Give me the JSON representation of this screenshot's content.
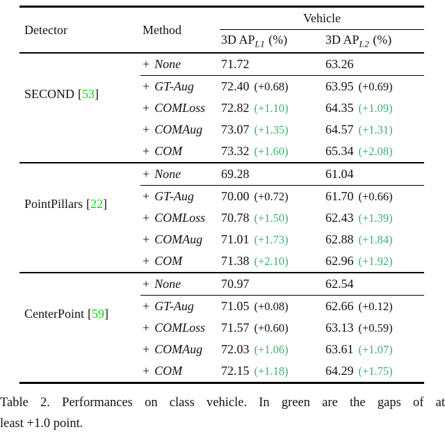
{
  "colors": {
    "cite_green": "#00e000",
    "gap_green": "#3bb273"
  },
  "symbols": {
    "plus": "+",
    "bracket_open": "[",
    "bracket_close": "]"
  },
  "table": {
    "header": {
      "detector": "Detector",
      "method": "Method",
      "span_label": "Vehicle",
      "metrics": [
        {
          "prefix": "3D AP",
          "sub": "L1",
          "suffix": "(%)"
        },
        {
          "prefix": "3D AP",
          "sub": "L2",
          "suffix": "(%)"
        }
      ]
    },
    "groups": [
      {
        "detector": "SECOND",
        "cite": "53",
        "rows": [
          {
            "method": "None",
            "l1": "71.72",
            "l1_gap": "",
            "l1_green": false,
            "l2": "63.26",
            "l2_gap": "",
            "l2_green": false
          },
          {
            "method": "GT-Aug",
            "l1": "72.40",
            "l1_gap": "(+0.68)",
            "l1_green": false,
            "l2": "63.95",
            "l2_gap": "(+0.69)",
            "l2_green": false
          },
          {
            "method": "COMLoss",
            "l1": "72.82",
            "l1_gap": "(+1.10)",
            "l1_green": true,
            "l2": "64.35",
            "l2_gap": "(+1.09)",
            "l2_green": true
          },
          {
            "method": "COMAug",
            "l1": "73.07",
            "l1_gap": "(+1.35)",
            "l1_green": true,
            "l2": "64.57",
            "l2_gap": "(+1.31)",
            "l2_green": true
          },
          {
            "method": "COM",
            "l1": "73.32",
            "l1_gap": "(+1.60)",
            "l1_green": true,
            "l2": "65.34",
            "l2_gap": "(+2.08)",
            "l2_green": true
          }
        ]
      },
      {
        "detector": "PointPillars",
        "cite": "22",
        "rows": [
          {
            "method": "None",
            "l1": "69.28",
            "l1_gap": "",
            "l1_green": false,
            "l2": "61.04",
            "l2_gap": "",
            "l2_green": false
          },
          {
            "method": "GT-Aug",
            "l1": "70.00",
            "l1_gap": "(+0.72)",
            "l1_green": false,
            "l2": "61.70",
            "l2_gap": "(+0.66)",
            "l2_green": false
          },
          {
            "method": "COMLoss",
            "l1": "70.78",
            "l1_gap": "(+1.50)",
            "l1_green": true,
            "l2": "62.43",
            "l2_gap": "(+1.39)",
            "l2_green": true
          },
          {
            "method": "COMAug",
            "l1": "71.01",
            "l1_gap": "(+1.73)",
            "l1_green": true,
            "l2": "62.88",
            "l2_gap": "(+1.84)",
            "l2_green": true
          },
          {
            "method": "COM",
            "l1": "71.38",
            "l1_gap": "(+2.10)",
            "l1_green": true,
            "l2": "62.96",
            "l2_gap": "(+1.92)",
            "l2_green": true
          }
        ]
      },
      {
        "detector": "CenterPoint",
        "cite": "59",
        "rows": [
          {
            "method": "None",
            "l1": "70.97",
            "l1_gap": "",
            "l1_green": false,
            "l2": "62.54",
            "l2_gap": "",
            "l2_green": false
          },
          {
            "method": "GT-Aug",
            "l1": "71.05",
            "l1_gap": "(+0.08)",
            "l1_green": false,
            "l2": "62.66",
            "l2_gap": "(+0.12)",
            "l2_green": false
          },
          {
            "method": "COMLoss",
            "l1": "71.57",
            "l1_gap": "(+0.60)",
            "l1_green": false,
            "l2": "63.13",
            "l2_gap": "(+0.59)",
            "l2_green": false
          },
          {
            "method": "COMAug",
            "l1": "72.03",
            "l1_gap": "(+1.06)",
            "l1_green": true,
            "l2": "63.61",
            "l2_gap": "(+1.07)",
            "l2_green": true
          },
          {
            "method": "COM",
            "l1": "72.15",
            "l1_gap": "(+1.18)",
            "l1_green": true,
            "l2": "64.29",
            "l2_gap": "(+1.75)",
            "l2_green": true
          }
        ]
      }
    ]
  },
  "caption": {
    "lines": [
      "Table 2. Performances on class vehicle. In green are the gaps of at",
      "least +1.0 point."
    ]
  }
}
